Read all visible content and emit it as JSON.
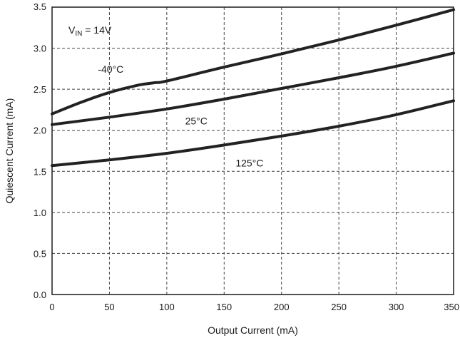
{
  "chart_data": {
    "type": "line",
    "xlabel": "Output Current (mA)",
    "ylabel": "Quiescent Current (mA)",
    "xlim": [
      0,
      350
    ],
    "ylim": [
      0,
      3.5
    ],
    "xticks": [
      "0",
      "50",
      "100",
      "150",
      "200",
      "250",
      "300",
      "350"
    ],
    "yticks": [
      "0.0",
      "0.5",
      "1.0",
      "1.5",
      "2.0",
      "2.5",
      "3.0",
      "3.5"
    ],
    "grid": true,
    "condition": {
      "prefix": "V",
      "subscript": "IN",
      "suffix": " = 14V"
    },
    "series": [
      {
        "name": "-40°C",
        "x": [
          0,
          25,
          50,
          75,
          90,
          100,
          150,
          200,
          250,
          300,
          350
        ],
        "y": [
          2.2,
          2.34,
          2.46,
          2.55,
          2.58,
          2.6,
          2.77,
          2.93,
          3.1,
          3.28,
          3.47
        ]
      },
      {
        "name": "25°C",
        "x": [
          0,
          50,
          100,
          150,
          200,
          250,
          300,
          350
        ],
        "y": [
          2.07,
          2.16,
          2.26,
          2.38,
          2.51,
          2.64,
          2.78,
          2.94
        ]
      },
      {
        "name": "125°C",
        "x": [
          0,
          50,
          100,
          150,
          200,
          250,
          300,
          350
        ],
        "y": [
          1.57,
          1.64,
          1.72,
          1.82,
          1.93,
          2.05,
          2.19,
          2.36
        ]
      }
    ]
  }
}
